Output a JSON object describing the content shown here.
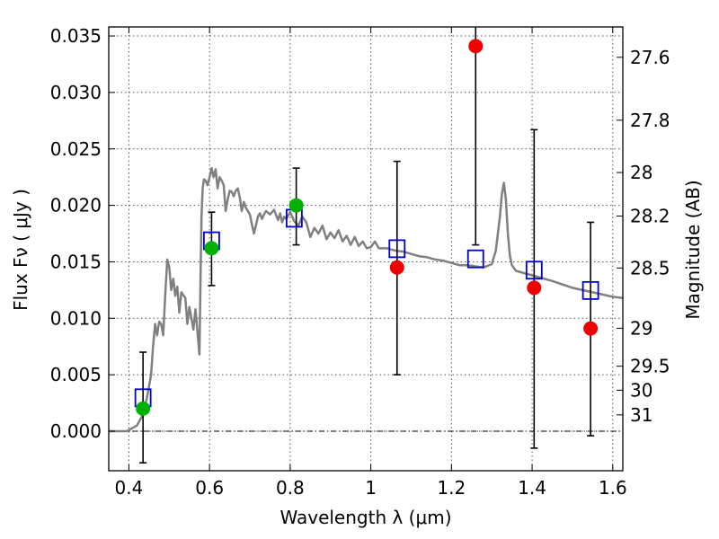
{
  "chart_data": {
    "type": "scatter",
    "xlabel": "Wavelength  λ (μm)",
    "ylabel": "Flux  Fν  ( μJy )",
    "y2label": "Magnitude (AB)",
    "xlim": [
      0.35,
      1.625
    ],
    "ylim": [
      -0.0035,
      0.0358
    ],
    "grid": true,
    "x_ticks": [
      0.4,
      0.6,
      0.8,
      1.0,
      1.2,
      1.4,
      1.6
    ],
    "x_tick_labels": [
      "0.4",
      "0.6",
      "0.8",
      "1",
      "1.2",
      "1.4",
      "1.6"
    ],
    "y_ticks": [
      0.0,
      0.005,
      0.01,
      0.015,
      0.02,
      0.025,
      0.03,
      0.035
    ],
    "y_tick_labels": [
      "0.000",
      "0.005",
      "0.010",
      "0.015",
      "0.020",
      "0.025",
      "0.030",
      "0.035"
    ],
    "y2_ticks": [
      27.6,
      27.8,
      28,
      28.2,
      28.5,
      29,
      29.5,
      30,
      31
    ],
    "y2_tick_labels": [
      "27.6",
      "27.8",
      "28",
      "28.2",
      "28.5",
      "29",
      "29.5",
      "30",
      "31"
    ],
    "colors": {
      "model": "#808080",
      "model_photometry": "#0000cc",
      "detection": "#00b000",
      "upper_limit": "#ee0000",
      "errorbar": "#000000"
    },
    "model_sed": {
      "x": [
        0.35,
        0.395,
        0.42,
        0.435,
        0.445,
        0.455,
        0.46,
        0.465,
        0.47,
        0.475,
        0.48,
        0.485,
        0.49,
        0.495,
        0.5,
        0.505,
        0.51,
        0.515,
        0.52,
        0.525,
        0.53,
        0.54,
        0.545,
        0.55,
        0.56,
        0.565,
        0.57,
        0.575,
        0.578,
        0.58,
        0.583,
        0.586,
        0.59,
        0.595,
        0.6,
        0.605,
        0.61,
        0.615,
        0.62,
        0.625,
        0.63,
        0.635,
        0.64,
        0.645,
        0.65,
        0.655,
        0.66,
        0.665,
        0.67,
        0.675,
        0.68,
        0.685,
        0.69,
        0.7,
        0.71,
        0.715,
        0.72,
        0.725,
        0.73,
        0.735,
        0.74,
        0.75,
        0.76,
        0.77,
        0.775,
        0.78,
        0.785,
        0.79,
        0.8,
        0.81,
        0.82,
        0.83,
        0.84,
        0.85,
        0.86,
        0.87,
        0.88,
        0.89,
        0.9,
        0.91,
        0.92,
        0.93,
        0.94,
        0.95,
        0.96,
        0.97,
        0.98,
        0.99,
        1.0,
        1.01,
        1.02,
        1.04,
        1.06,
        1.08,
        1.1,
        1.12,
        1.14,
        1.16,
        1.18,
        1.2,
        1.22,
        1.24,
        1.26,
        1.28,
        1.3,
        1.31,
        1.32,
        1.325,
        1.33,
        1.335,
        1.34,
        1.345,
        1.35,
        1.36,
        1.38,
        1.4,
        1.45,
        1.5,
        1.55,
        1.6,
        1.625
      ],
      "y": [
        0.0,
        0.0,
        0.0005,
        0.0015,
        0.003,
        0.005,
        0.0075,
        0.0095,
        0.0085,
        0.0097,
        0.0095,
        0.0085,
        0.012,
        0.0152,
        0.0145,
        0.0125,
        0.0135,
        0.012,
        0.0128,
        0.0105,
        0.0123,
        0.0118,
        0.0095,
        0.011,
        0.009,
        0.0108,
        0.0088,
        0.0068,
        0.0145,
        0.019,
        0.0215,
        0.0223,
        0.0222,
        0.0218,
        0.0225,
        0.0233,
        0.0225,
        0.0232,
        0.0215,
        0.0225,
        0.0222,
        0.0218,
        0.0195,
        0.0205,
        0.0213,
        0.0212,
        0.0208,
        0.0213,
        0.0215,
        0.0207,
        0.0195,
        0.0203,
        0.0198,
        0.0192,
        0.0175,
        0.0182,
        0.019,
        0.0193,
        0.0188,
        0.0192,
        0.0195,
        0.0192,
        0.0196,
        0.0187,
        0.0193,
        0.0185,
        0.019,
        0.0188,
        0.0194,
        0.0186,
        0.0182,
        0.019,
        0.0185,
        0.0172,
        0.018,
        0.0175,
        0.0182,
        0.017,
        0.0176,
        0.0171,
        0.0178,
        0.0168,
        0.0173,
        0.0165,
        0.0172,
        0.0164,
        0.0168,
        0.0162,
        0.0163,
        0.0168,
        0.0162,
        0.0162,
        0.016,
        0.0159,
        0.0157,
        0.0155,
        0.0154,
        0.0152,
        0.0151,
        0.0149,
        0.0147,
        0.0147,
        0.0146,
        0.0145,
        0.0148,
        0.016,
        0.019,
        0.021,
        0.022,
        0.0205,
        0.0175,
        0.0155,
        0.0147,
        0.0142,
        0.014,
        0.0138,
        0.0133,
        0.0127,
        0.0123,
        0.0119,
        0.0118
      ]
    },
    "model_photometry": {
      "x": [
        0.435,
        0.605,
        0.81,
        1.065,
        1.26,
        1.405,
        1.545
      ],
      "y": [
        0.003,
        0.0169,
        0.0189,
        0.0162,
        0.0153,
        0.0143,
        0.0125
      ]
    },
    "detections": {
      "x": [
        0.435,
        0.605,
        0.815
      ],
      "y": [
        0.002,
        0.0162,
        0.02
      ],
      "yerr_low": [
        0.0048,
        0.0033,
        0.0035
      ],
      "yerr_high": [
        0.005,
        0.0032,
        0.0033
      ]
    },
    "upper_limits": {
      "x": [
        1.065,
        1.26,
        1.405,
        1.545
      ],
      "y": [
        0.0145,
        0.0341,
        0.0127,
        0.0091
      ],
      "yerr_low": [
        0.0095,
        0.0176,
        0.0142,
        0.0095
      ],
      "yerr_high": [
        0.0094,
        0.0025,
        0.014,
        0.0094
      ]
    }
  }
}
